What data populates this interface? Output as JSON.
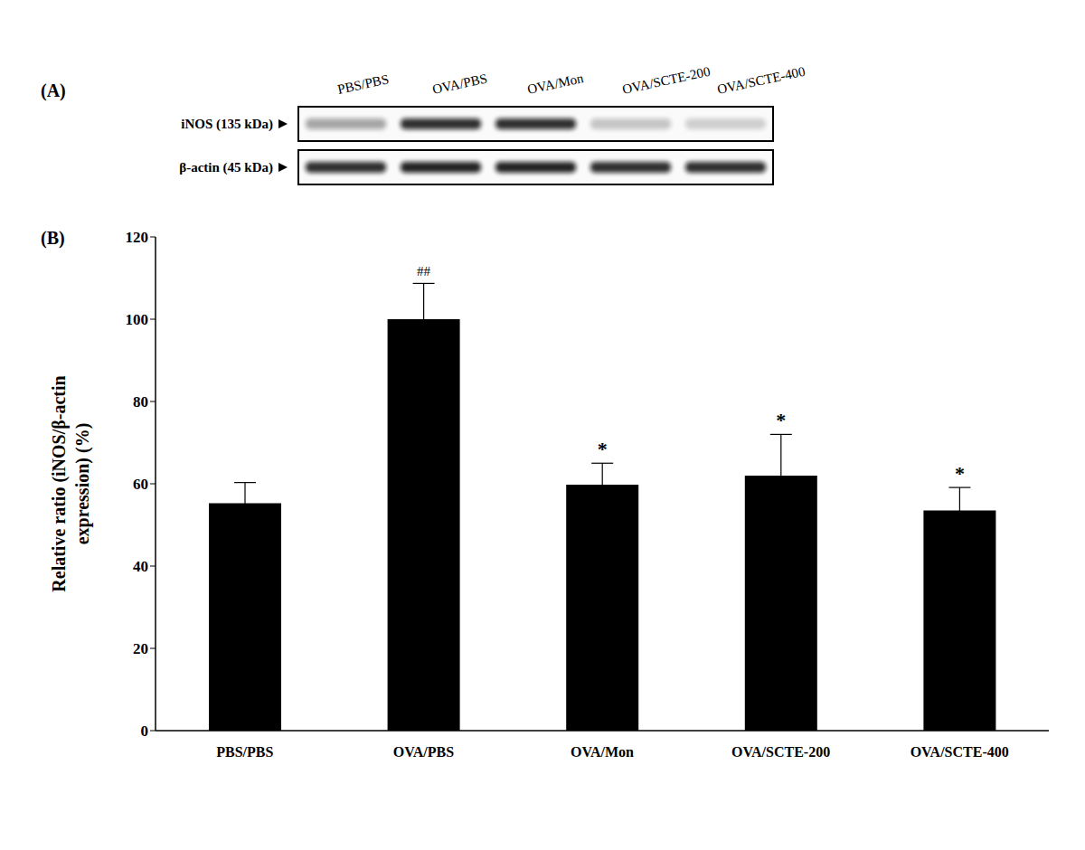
{
  "panel_a": {
    "label": "(A)",
    "lanes": [
      "PBS/PBS",
      "OVA/PBS",
      "OVA/Mon",
      "OVA/SCTE-200",
      "OVA/SCTE-400"
    ],
    "rows": [
      "iNOS (135 kDa)",
      "β-actin (45 kDa)"
    ]
  },
  "chart_data": {
    "type": "bar",
    "panel_label": "(B)",
    "categories": [
      "PBS/PBS",
      "OVA/PBS",
      "OVA/Mon",
      "OVA/SCTE-200",
      "OVA/SCTE-400"
    ],
    "values": [
      55.3,
      100,
      59.8,
      62,
      53.5
    ],
    "errors": [
      5,
      8.7,
      5.2,
      10,
      5.6
    ],
    "significance": [
      null,
      "##",
      "*",
      "*",
      "*"
    ],
    "y_label": [
      "Relative ratio (iNOS/β-actin",
      "expression) (%)"
    ],
    "color": "#000000",
    "ylim": [
      0,
      120
    ],
    "yticks": [
      0,
      20,
      40,
      60,
      80,
      100,
      120
    ],
    "grid": false
  }
}
